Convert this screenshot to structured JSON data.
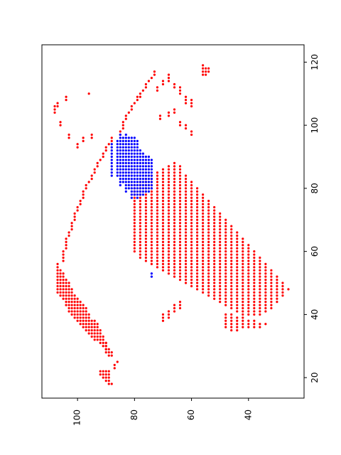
{
  "chart_data": {
    "type": "scatter",
    "title": "",
    "xlabel": "",
    "ylabel": "",
    "xlim": [
      112.5,
      20.5
    ],
    "ylim": [
      13.5,
      125.5
    ],
    "x_ticks": [
      "100",
      "80",
      "60",
      "40"
    ],
    "x_tick_values": [
      100,
      80,
      60,
      40
    ],
    "y_ticks": [
      "20",
      "40",
      "60",
      "80",
      "100",
      "120"
    ],
    "y_tick_values": [
      20,
      40,
      60,
      80,
      100,
      120
    ],
    "grid": false,
    "legend": "none",
    "series": [
      {
        "color": "#ff0000",
        "runs": [
          [
            88,
            18,
            18
          ],
          [
            89,
            18,
            22
          ],
          [
            90,
            19,
            22
          ],
          [
            91,
            20,
            22
          ],
          [
            92,
            21,
            22
          ],
          [
            87,
            23,
            24
          ],
          [
            86,
            25,
            25
          ],
          [
            88,
            27,
            28
          ],
          [
            89,
            27,
            29
          ],
          [
            90,
            28,
            31
          ],
          [
            90,
            29,
            31
          ],
          [
            91,
            30,
            33
          ],
          [
            92,
            31,
            35
          ],
          [
            93,
            32,
            37
          ],
          [
            94,
            32,
            38
          ],
          [
            95,
            33,
            38
          ],
          [
            96,
            34,
            40
          ],
          [
            97,
            35,
            42
          ],
          [
            98,
            36,
            43
          ],
          [
            99,
            37,
            44
          ],
          [
            100,
            38,
            45
          ],
          [
            101,
            39,
            46
          ],
          [
            102,
            40,
            48
          ],
          [
            103,
            41,
            50
          ],
          [
            104,
            43,
            51
          ],
          [
            105,
            45,
            53
          ],
          [
            106,
            46,
            54
          ],
          [
            107,
            47,
            56
          ],
          [
            105,
            57,
            60
          ],
          [
            104,
            61,
            64
          ],
          [
            103,
            65,
            66
          ],
          [
            102,
            67,
            69
          ],
          [
            101,
            70,
            72
          ],
          [
            100,
            73,
            74
          ],
          [
            99,
            75,
            76
          ],
          [
            98,
            77,
            79
          ],
          [
            97,
            80,
            81
          ],
          [
            96,
            82,
            82
          ],
          [
            95,
            83,
            84
          ],
          [
            94,
            85,
            86
          ],
          [
            93,
            87,
            88
          ],
          [
            92,
            89,
            89
          ],
          [
            91,
            90,
            91
          ],
          [
            90,
            92,
            93
          ],
          [
            89,
            94,
            94
          ],
          [
            88,
            95,
            96
          ],
          [
            85,
            97,
            98
          ],
          [
            84,
            99,
            101
          ],
          [
            83,
            102,
            103
          ],
          [
            82,
            104,
            104
          ],
          [
            81,
            105,
            106
          ],
          [
            80,
            107,
            107
          ],
          [
            79,
            108,
            109
          ],
          [
            78,
            109,
            110
          ],
          [
            77,
            111,
            111
          ],
          [
            76,
            112,
            113
          ],
          [
            75,
            114,
            114
          ],
          [
            74,
            115,
            115
          ],
          [
            73,
            116,
            117
          ],
          [
            56,
            116,
            119
          ],
          [
            55,
            116,
            118
          ],
          [
            54,
            117,
            118
          ],
          [
            95,
            96,
            97
          ],
          [
            98,
            95,
            96
          ],
          [
            100,
            93,
            94
          ],
          [
            103,
            96,
            97
          ],
          [
            106,
            100,
            101
          ],
          [
            108,
            104,
            106
          ],
          [
            107,
            106,
            107
          ],
          [
            104,
            108,
            109
          ],
          [
            96,
            110,
            110
          ],
          [
            60,
            106,
            108
          ],
          [
            62,
            107,
            109
          ],
          [
            64,
            110,
            112
          ],
          [
            66,
            112,
            113
          ],
          [
            68,
            114,
            116
          ],
          [
            70,
            113,
            114
          ],
          [
            72,
            111,
            112
          ],
          [
            66,
            104,
            105
          ],
          [
            68,
            103,
            104
          ],
          [
            71,
            102,
            103
          ],
          [
            64,
            100,
            101
          ],
          [
            62,
            99,
            100
          ],
          [
            60,
            97,
            98
          ],
          [
            80,
            60,
            81
          ],
          [
            78,
            58,
            82
          ],
          [
            76,
            57,
            83
          ],
          [
            74,
            56,
            84
          ],
          [
            72,
            55,
            85
          ],
          [
            70,
            54,
            86
          ],
          [
            68,
            53,
            87
          ],
          [
            66,
            52,
            88
          ],
          [
            64,
            51,
            87
          ],
          [
            62,
            50,
            84
          ],
          [
            60,
            49,
            82
          ],
          [
            58,
            48,
            80
          ],
          [
            56,
            47,
            78
          ],
          [
            54,
            46,
            76
          ],
          [
            52,
            45,
            74
          ],
          [
            50,
            44,
            72
          ],
          [
            48,
            43,
            70
          ],
          [
            46,
            42,
            68
          ],
          [
            44,
            41,
            66
          ],
          [
            42,
            40,
            64
          ],
          [
            40,
            40,
            62
          ],
          [
            38,
            40,
            60
          ],
          [
            36,
            40,
            58
          ],
          [
            34,
            41,
            56
          ],
          [
            32,
            42,
            54
          ],
          [
            30,
            44,
            52
          ],
          [
            28,
            46,
            50
          ],
          [
            26,
            48,
            48
          ],
          [
            48,
            36,
            40
          ],
          [
            46,
            35,
            40
          ],
          [
            44,
            35,
            39
          ],
          [
            42,
            36,
            39
          ],
          [
            40,
            36,
            38
          ],
          [
            38,
            36,
            38
          ],
          [
            36,
            36,
            37
          ],
          [
            34,
            37,
            37
          ],
          [
            70,
            38,
            40
          ],
          [
            68,
            39,
            41
          ],
          [
            66,
            41,
            43
          ],
          [
            64,
            42,
            44
          ]
        ]
      },
      {
        "color": "#0000ff",
        "runs": [
          [
            86,
            84,
            95
          ],
          [
            84,
            82,
            96
          ],
          [
            82,
            80,
            96
          ],
          [
            80,
            78,
            96
          ],
          [
            78,
            78,
            92
          ],
          [
            76,
            79,
            90
          ],
          [
            74,
            80,
            89
          ],
          [
            88,
            85,
            94
          ],
          [
            85,
            81,
            97
          ],
          [
            83,
            79,
            97
          ],
          [
            81,
            77,
            96
          ],
          [
            79,
            77,
            95
          ],
          [
            77,
            78,
            91
          ],
          [
            75,
            79,
            90
          ],
          [
            88,
            84,
            84
          ],
          [
            74,
            52,
            53
          ]
        ]
      }
    ]
  }
}
